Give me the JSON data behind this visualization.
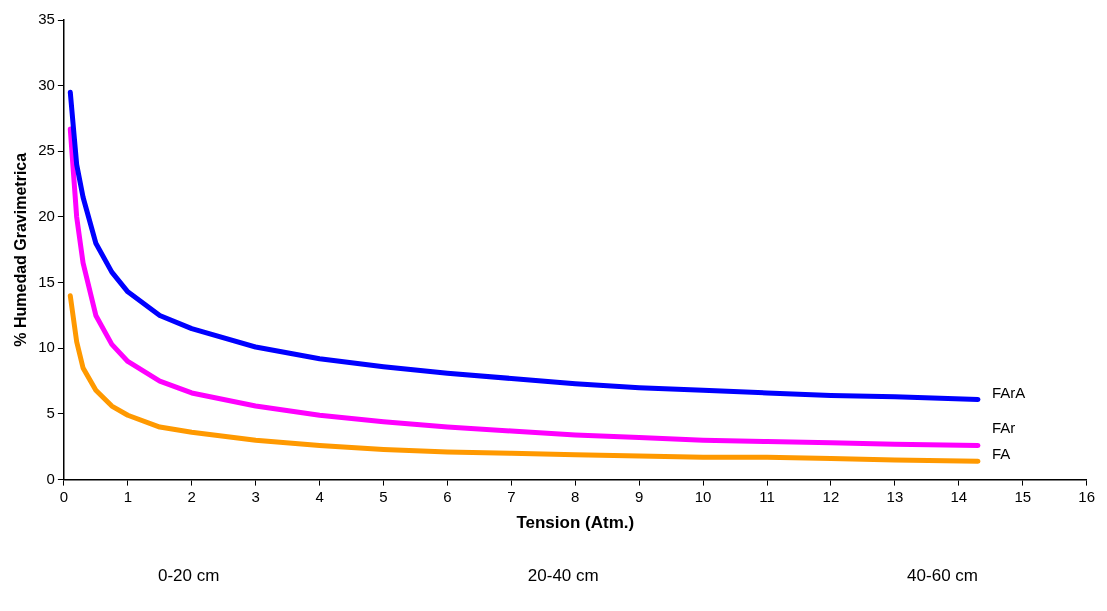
{
  "chart_data": {
    "type": "line",
    "xlabel": "Tension (Atm.)",
    "ylabel": "% Humedad Gravimetrica",
    "xlim": [
      0,
      16
    ],
    "xticks": [
      0,
      1,
      2,
      3,
      4,
      5,
      6,
      7,
      8,
      9,
      10,
      11,
      12,
      13,
      14,
      15,
      16
    ],
    "ylim": [
      0,
      35
    ],
    "yticks": [
      0,
      5,
      10,
      15,
      20,
      25,
      30,
      35
    ],
    "grid": false,
    "legend": false,
    "marker": "none",
    "line_style": "solid",
    "x": [
      0.1,
      0.2,
      0.3,
      0.5,
      0.75,
      1,
      1.5,
      2,
      3,
      4,
      5,
      6,
      7,
      8,
      9,
      10,
      11,
      12,
      13,
      14.3
    ],
    "series": [
      {
        "name": "FArA",
        "color": "#0000ff",
        "values": [
          29.5,
          24,
          21.5,
          18,
          15.8,
          14.3,
          12.5,
          11.5,
          10.1,
          9.2,
          8.6,
          8.1,
          7.7,
          7.3,
          7.0,
          6.8,
          6.6,
          6.4,
          6.3,
          6.1
        ]
      },
      {
        "name": "FAr",
        "color": "#ff00ff",
        "values": [
          26.7,
          20,
          16.5,
          12.5,
          10.3,
          9,
          7.5,
          6.6,
          5.6,
          4.9,
          4.4,
          4.0,
          3.7,
          3.4,
          3.2,
          3.0,
          2.9,
          2.8,
          2.7,
          2.6
        ]
      },
      {
        "name": "FA",
        "color": "#ff9900",
        "values": [
          14,
          10.5,
          8.5,
          6.8,
          5.6,
          4.9,
          4.0,
          3.6,
          3.0,
          2.6,
          2.3,
          2.1,
          2.0,
          1.9,
          1.8,
          1.7,
          1.7,
          1.6,
          1.5,
          1.4
        ]
      }
    ],
    "annotations": [
      "0-20 cm",
      "20-40 cm",
      "40-60 cm"
    ]
  }
}
